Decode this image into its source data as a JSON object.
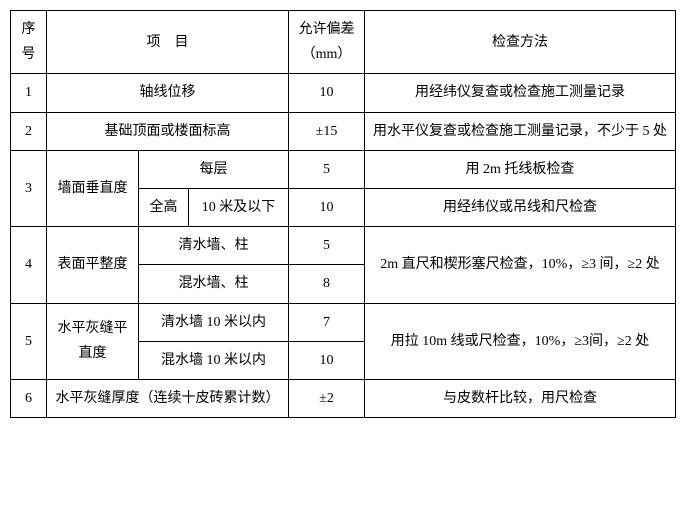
{
  "header": {
    "seq": "序号",
    "item_left": "项",
    "item_right": "目",
    "tolerance": "允许偏差（mm）",
    "method": "检查方法"
  },
  "rows": {
    "r1": {
      "seq": "1",
      "item": "轴线位移",
      "tol": "10",
      "method": "用经纬仪复查或检查施工测量记录"
    },
    "r2": {
      "seq": "2",
      "item": "基础顶面或楼面标高",
      "tol": "±15",
      "method": "用水平仪复查或检查施工测量记录，不少于 5 处"
    },
    "r3": {
      "seq": "3",
      "item": "墙面垂直度",
      "sub1": {
        "label": "每层",
        "tol": "5",
        "method": "用 2m 托线板检查"
      },
      "sub2a": "全高",
      "sub2b": "10 米及以下",
      "sub2_tol": "10",
      "sub2_method": "用经纬仪或吊线和尺检查"
    },
    "r4": {
      "seq": "4",
      "item": "表面平整度",
      "sub1": {
        "label": "清水墙、柱",
        "tol": "5"
      },
      "sub2": {
        "label": "混水墙、柱",
        "tol": "8"
      },
      "method": "2m 直尺和楔形塞尺检查，10%，≥3 间，≥2 处"
    },
    "r5": {
      "seq": "5",
      "item": "水平灰缝平直度",
      "sub1": {
        "label": "清水墙 10 米以内",
        "tol": "7"
      },
      "sub2": {
        "label": "混水墙 10 米以内",
        "tol": "10"
      },
      "method": "用拉 10m 线或尺检查，10%，≥3间，≥2 处"
    },
    "r6": {
      "seq": "6",
      "item": "水平灰缝厚度（连续十皮砖累计数）",
      "tol": "±2",
      "method": "与皮数杆比较，用尺检查"
    }
  }
}
